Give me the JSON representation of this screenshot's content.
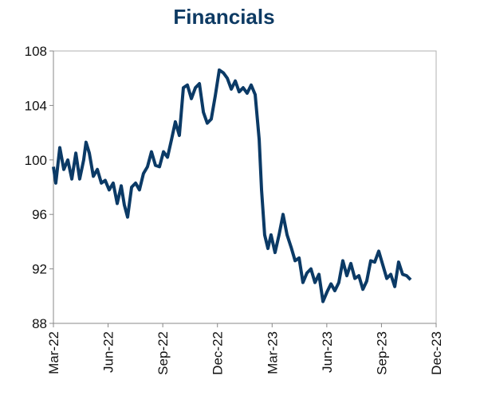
{
  "chart_data": {
    "type": "line",
    "title": "Financials",
    "x": [
      0,
      0.13,
      0.35,
      0.57,
      0.79,
      1.01,
      1.23,
      1.44,
      1.66,
      1.79,
      1.97,
      2.19,
      2.41,
      2.63,
      2.84,
      3.06,
      3.28,
      3.5,
      3.72,
      3.89,
      4.07,
      4.29,
      4.51,
      4.72,
      4.94,
      5.16,
      5.38,
      5.6,
      5.82,
      6.04,
      6.26,
      6.48,
      6.69,
      6.91,
      7.13,
      7.35,
      7.57,
      7.79,
      8.01,
      8.23,
      8.44,
      8.66,
      8.88,
      9.1,
      9.32,
      9.54,
      9.76,
      9.98,
      10.19,
      10.41,
      10.63,
      10.85,
      11.07,
      11.29,
      11.42,
      11.59,
      11.77,
      11.94,
      12.16,
      12.38,
      12.6,
      12.82,
      13.04,
      13.26,
      13.48,
      13.69,
      13.91,
      14.13,
      14.35,
      14.57,
      14.79,
      15.01,
      15.23,
      15.44,
      15.66,
      15.88,
      16.1,
      16.32,
      16.54,
      16.76,
      16.98,
      17.19,
      17.41,
      17.63,
      17.85,
      18.07,
      18.29,
      18.51,
      18.73,
      18.94,
      19.16,
      19.38,
      19.6
    ],
    "series": [
      {
        "name": "Financials",
        "color": "#0b3a66",
        "values": [
          99.5,
          98.3,
          100.9,
          99.3,
          100,
          98.6,
          100.5,
          98.6,
          100,
          101.3,
          100.5,
          98.8,
          99.3,
          98.3,
          98.5,
          97.8,
          98.3,
          96.8,
          98.1,
          96.7,
          95.8,
          98,
          98.3,
          97.8,
          99,
          99.5,
          100.6,
          99.6,
          99.5,
          100.6,
          100.2,
          101.5,
          102.8,
          101.8,
          105.3,
          105.5,
          104.5,
          105.3,
          105.6,
          103.5,
          102.7,
          103,
          104.7,
          106.6,
          106.4,
          106,
          105.2,
          105.8,
          105,
          105.3,
          104.9,
          105.5,
          104.8,
          101.5,
          97.8,
          94.5,
          93.5,
          94.5,
          93.2,
          94.5,
          96,
          94.5,
          93.6,
          92.6,
          92.8,
          91,
          91.7,
          92,
          91,
          91.6,
          89.6,
          90.3,
          90.9,
          90.4,
          91,
          92.6,
          91.5,
          92.4,
          91.3,
          91.5,
          90.5,
          91.1,
          92.6,
          92.5,
          93.3,
          92.3,
          91.3,
          91.6,
          90.7,
          92.5,
          91.6,
          91.5,
          91.2
        ]
      }
    ],
    "xlim": [
      0,
      21
    ],
    "xticks": [
      {
        "value": 0,
        "label": "Mar-22"
      },
      {
        "value": 3,
        "label": "Jun-22"
      },
      {
        "value": 6,
        "label": "Sep-22"
      },
      {
        "value": 9,
        "label": "Dec-22"
      },
      {
        "value": 12,
        "label": "Mar-23"
      },
      {
        "value": 15,
        "label": "Jun-23"
      },
      {
        "value": 18,
        "label": "Sep-23"
      },
      {
        "value": 21,
        "label": "Dec-23"
      }
    ],
    "ylim": [
      88,
      108
    ],
    "yticks": [
      88,
      92,
      96,
      100,
      104,
      108
    ],
    "grid": false
  }
}
